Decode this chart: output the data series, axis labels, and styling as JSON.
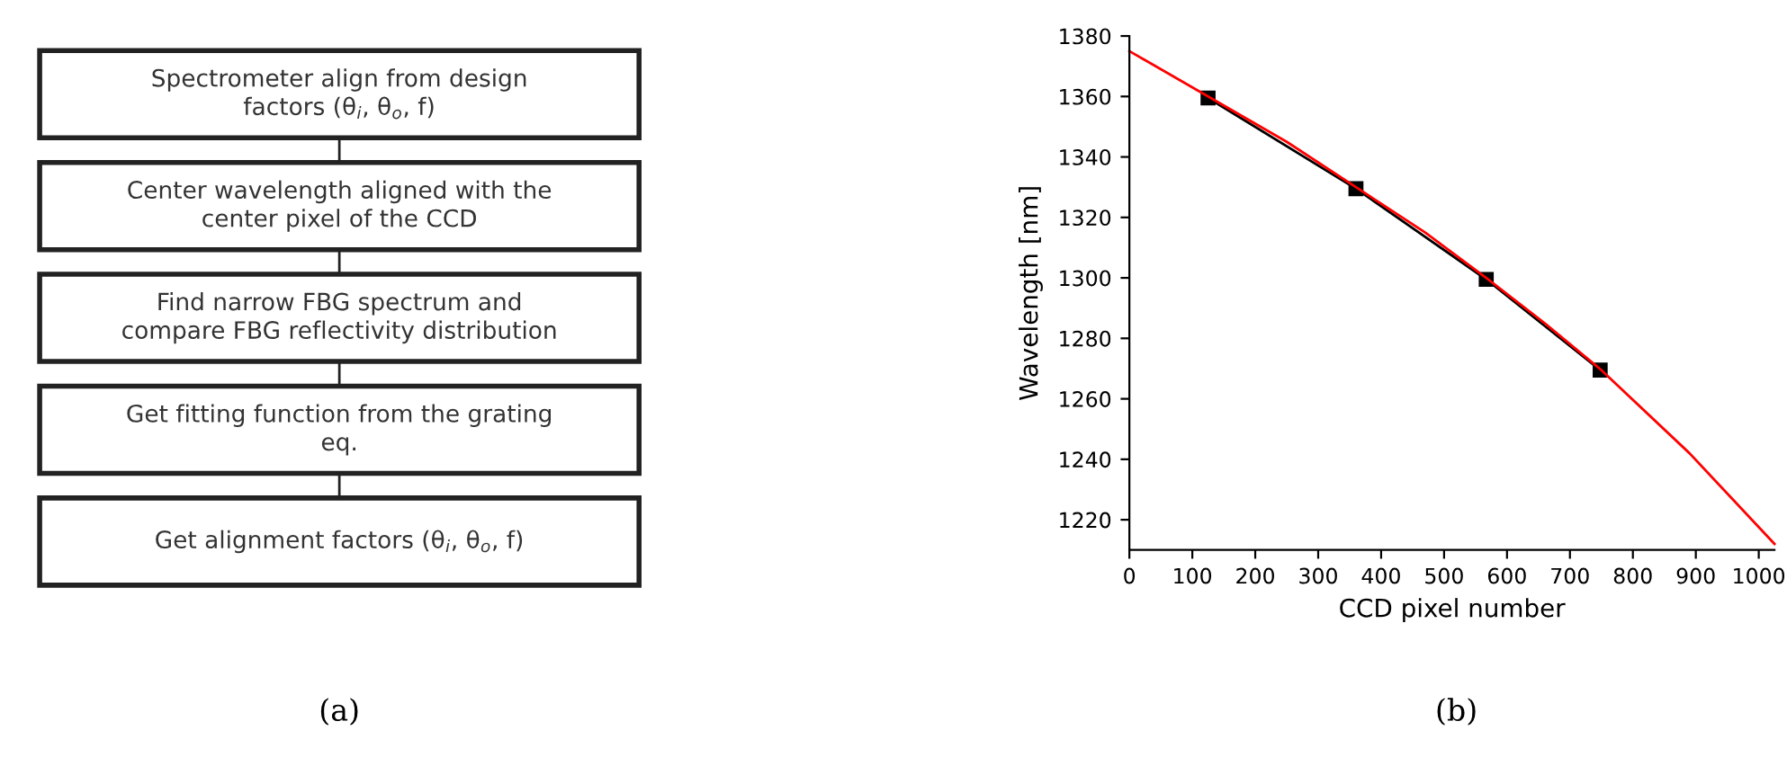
{
  "chart_data": [
    {
      "type": "other",
      "annotations": [
        "Spectrometer align from design\nfactors (θ$_{i}$, θ$_{o}$, f)",
        "Center wavelength aligned with the\ncenter pixel of the CCD",
        "Find narrow FBG spectrum and\ncompare FBG reflectivity distribution",
        "Get fitting function from the grating\neq.",
        "Get alignment factors (θ$_{i}$, θ$_{o}$, f)",
        "(a)"
      ]
    },
    {
      "type": "line",
      "xlabel": "CCD pixel number",
      "ylabel": "Wavelength [nm]",
      "annotations": [
        "(b)"
      ],
      "xlim": [
        0,
        1025
      ],
      "xticks": [
        0,
        100,
        200,
        300,
        400,
        500,
        600,
        700,
        800,
        900,
        1000
      ],
      "ylim": [
        1210,
        1380
      ],
      "yticks": [
        1220,
        1240,
        1260,
        1280,
        1300,
        1320,
        1340,
        1360,
        1380
      ],
      "grid": false,
      "series": [
        {
          "color": "#000000",
          "marker": "square",
          "line_style": "solid",
          "x": [
            125,
            360,
            567,
            748
          ],
          "values": [
            1359.5,
            1329.5,
            1299.5,
            1269.5
          ]
        },
        {
          "color": "#ff0000",
          "marker": "none",
          "line_style": "solid",
          "x": [
            0,
            125,
            250,
            360,
            470,
            567,
            660,
            750,
            890,
            1025
          ],
          "values": [
            1375,
            1360,
            1345,
            1330,
            1315,
            1300,
            1285,
            1269.5,
            1242,
            1212
          ]
        }
      ]
    }
  ]
}
